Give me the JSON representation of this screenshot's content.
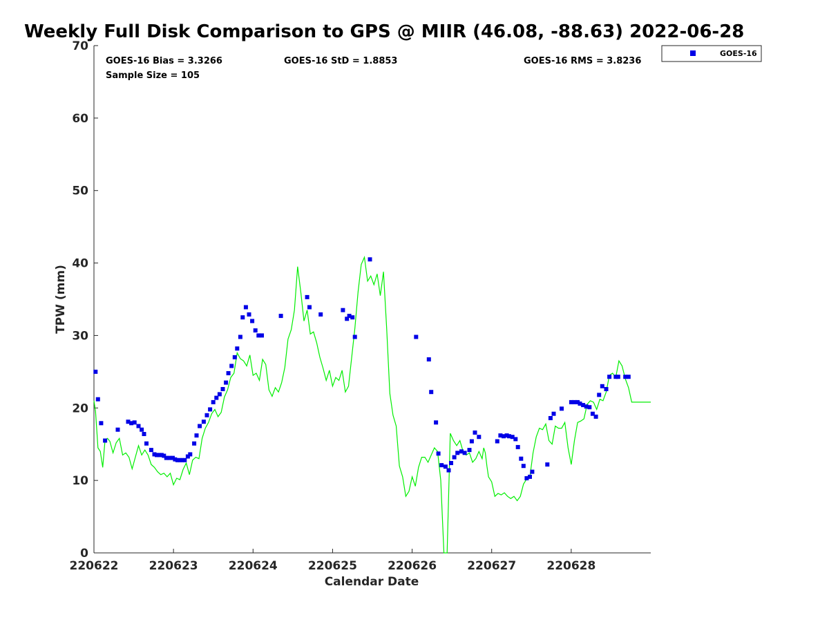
{
  "chart_data": {
    "type": "scatter",
    "title": "Weekly Full Disk Comparison to GPS @ MIIR (46.08, -88.63) 2022-06-28",
    "xlabel": "Calendar Date",
    "ylabel": "TPW (mm)",
    "xlim": [
      0,
      7.0
    ],
    "ylim": [
      0,
      70
    ],
    "yticks": [
      0,
      10,
      20,
      30,
      40,
      50,
      60,
      70
    ],
    "xticks": [
      {
        "value": 0,
        "label": "220622"
      },
      {
        "value": 1,
        "label": "220623"
      },
      {
        "value": 2,
        "label": "220624"
      },
      {
        "value": 3,
        "label": "220625"
      },
      {
        "value": 4,
        "label": "220626"
      },
      {
        "value": 5,
        "label": "220627"
      },
      {
        "value": 6,
        "label": "220628"
      }
    ],
    "stats": {
      "bias": "GOES-16 Bias = 3.3266",
      "std": "GOES-16 StD = 1.8853",
      "rms": "GOES-16 RMS = 3.8236",
      "sample": "Sample Size = 105"
    },
    "legend": {
      "placement": "outside-top-right",
      "entries": [
        "GOES-16"
      ]
    },
    "colors": {
      "goes": "#0000e6",
      "gps": "#00ee00"
    },
    "series": [
      {
        "name": "GOES-16",
        "marker": "square",
        "x": [
          0.02,
          0.05,
          0.09,
          0.14,
          0.3,
          0.43,
          0.47,
          0.51,
          0.56,
          0.6,
          0.63,
          0.66,
          0.72,
          0.76,
          0.79,
          0.82,
          0.85,
          0.88,
          0.91,
          0.95,
          0.99,
          1.02,
          1.05,
          1.08,
          1.11,
          1.14,
          1.18,
          1.21,
          1.26,
          1.29,
          1.33,
          1.38,
          1.42,
          1.46,
          1.5,
          1.54,
          1.58,
          1.62,
          1.66,
          1.69,
          1.73,
          1.77,
          1.8,
          1.84,
          1.87,
          1.91,
          1.95,
          1.99,
          2.03,
          2.07,
          2.11,
          2.35,
          2.68,
          2.71,
          2.85,
          3.13,
          3.18,
          3.21,
          3.25,
          3.28,
          3.47,
          4.05,
          4.21,
          4.24,
          4.3,
          4.33,
          4.37,
          4.42,
          4.46,
          4.49,
          4.53,
          4.57,
          4.62,
          4.66,
          4.72,
          4.75,
          4.79,
          4.84,
          5.07,
          5.11,
          5.15,
          5.19,
          5.22,
          5.26,
          5.3,
          5.33,
          5.37,
          5.4,
          5.44,
          5.48,
          5.51,
          5.7,
          5.74,
          5.78,
          5.88,
          6.0,
          6.04,
          6.08,
          6.11,
          6.15,
          6.19,
          6.23,
          6.27,
          6.31,
          6.35,
          6.39,
          6.44,
          6.48,
          6.56,
          6.59,
          6.68,
          6.72
        ],
        "values": [
          25.0,
          21.2,
          17.9,
          15.5,
          17.0,
          18.1,
          17.9,
          18.0,
          17.5,
          17.0,
          16.4,
          15.1,
          14.2,
          13.6,
          13.5,
          13.5,
          13.5,
          13.4,
          13.1,
          13.1,
          13.1,
          12.9,
          12.8,
          12.8,
          12.8,
          12.8,
          13.3,
          13.6,
          15.1,
          16.2,
          17.5,
          18.1,
          19.0,
          19.8,
          20.8,
          21.4,
          21.9,
          22.6,
          23.5,
          24.8,
          25.8,
          27.0,
          28.2,
          29.8,
          32.5,
          33.9,
          32.9,
          32.0,
          30.7,
          30.0,
          30.0,
          32.7,
          35.3,
          33.9,
          32.9,
          33.5,
          32.3,
          32.7,
          32.5,
          29.8,
          40.5,
          29.8,
          26.7,
          22.2,
          18.0,
          13.7,
          12.1,
          11.9,
          11.4,
          12.4,
          13.2,
          13.8,
          14.0,
          13.8,
          14.2,
          15.4,
          16.6,
          16.0,
          15.4,
          16.2,
          16.1,
          16.2,
          16.1,
          16.0,
          15.7,
          14.6,
          13.0,
          12.0,
          10.3,
          10.5,
          11.2,
          12.2,
          18.6,
          19.2,
          19.9,
          20.8,
          20.8,
          20.8,
          20.6,
          20.4,
          20.2,
          20.1,
          19.2,
          18.8,
          21.8,
          23.0,
          22.6,
          24.3,
          24.3,
          24.3,
          24.3,
          24.3
        ]
      },
      {
        "name": "GPS",
        "marker": "line",
        "x": [
          0.0,
          0.02,
          0.05,
          0.08,
          0.11,
          0.14,
          0.17,
          0.2,
          0.24,
          0.28,
          0.32,
          0.36,
          0.4,
          0.44,
          0.48,
          0.52,
          0.56,
          0.6,
          0.64,
          0.68,
          0.72,
          0.76,
          0.8,
          0.84,
          0.88,
          0.92,
          0.96,
          1.0,
          1.04,
          1.08,
          1.12,
          1.16,
          1.2,
          1.24,
          1.28,
          1.32,
          1.36,
          1.4,
          1.44,
          1.48,
          1.52,
          1.56,
          1.6,
          1.64,
          1.68,
          1.72,
          1.76,
          1.8,
          1.84,
          1.88,
          1.92,
          1.96,
          2.0,
          2.04,
          2.08,
          2.12,
          2.16,
          2.2,
          2.24,
          2.28,
          2.32,
          2.36,
          2.4,
          2.44,
          2.48,
          2.52,
          2.56,
          2.6,
          2.64,
          2.68,
          2.72,
          2.76,
          2.8,
          2.84,
          2.88,
          2.92,
          2.96,
          3.0,
          3.04,
          3.08,
          3.12,
          3.16,
          3.2,
          3.24,
          3.28,
          3.32,
          3.36,
          3.4,
          3.44,
          3.48,
          3.52,
          3.56,
          3.6,
          3.64,
          3.68,
          3.72,
          3.76,
          3.8,
          3.84,
          3.88,
          3.92,
          3.96,
          4.0,
          4.04,
          4.08,
          4.12,
          4.16,
          4.2,
          4.24,
          4.28,
          4.32,
          4.36,
          4.4,
          4.44,
          4.48,
          4.52,
          4.56,
          4.6,
          4.64,
          4.68,
          4.72,
          4.76,
          4.8,
          4.84,
          4.88,
          4.9,
          4.92,
          4.94,
          4.96,
          5.0,
          5.04,
          5.08,
          5.12,
          5.16,
          5.2,
          5.24,
          5.28,
          5.32,
          5.36,
          5.4,
          5.44,
          5.48,
          5.52,
          5.56,
          5.6,
          5.64,
          5.68,
          5.72,
          5.76,
          5.8,
          5.84,
          5.88,
          5.92,
          5.96,
          6.0,
          6.04,
          6.08,
          6.12,
          6.16,
          6.2,
          6.24,
          6.28,
          6.32,
          6.36,
          6.4,
          6.44,
          6.48,
          6.52,
          6.56,
          6.6,
          6.64,
          6.68,
          6.72,
          6.76,
          6.8,
          6.84,
          6.88,
          6.92,
          6.96,
          7.0
        ],
        "values": [
          21.0,
          19.5,
          14.5,
          14.0,
          11.8,
          15.6,
          15.8,
          15.4,
          13.8,
          15.2,
          15.8,
          13.5,
          13.8,
          13.2,
          11.6,
          13.2,
          14.8,
          13.5,
          14.2,
          13.5,
          12.2,
          11.8,
          11.2,
          10.8,
          11.0,
          10.5,
          11.0,
          9.4,
          10.3,
          10.1,
          11.5,
          12.4,
          10.8,
          12.8,
          13.2,
          13.0,
          15.8,
          17.2,
          18.0,
          19.2,
          19.8,
          18.8,
          19.4,
          21.5,
          22.5,
          24.2,
          24.8,
          27.6,
          26.8,
          26.5,
          25.8,
          27.3,
          24.5,
          24.8,
          23.8,
          26.7,
          26.0,
          22.5,
          21.6,
          22.8,
          22.2,
          23.5,
          25.6,
          29.5,
          30.8,
          33.5,
          39.5,
          36.0,
          32.0,
          33.5,
          30.2,
          30.5,
          29.0,
          27.0,
          25.5,
          23.8,
          25.2,
          23.0,
          24.2,
          23.8,
          25.2,
          22.2,
          23.0,
          27.0,
          31.0,
          36.0,
          39.8,
          40.8,
          37.5,
          38.2,
          37.0,
          38.5,
          35.5,
          38.8,
          31.0,
          22.0,
          19.0,
          17.5,
          12.0,
          10.5,
          7.8,
          8.5,
          10.5,
          9.2,
          11.8,
          13.2,
          13.2,
          12.5,
          13.5,
          14.5,
          14.0,
          10.0,
          0.0,
          0.0,
          16.5,
          15.5,
          14.8,
          15.5,
          14.0,
          13.5,
          13.8,
          12.5,
          13.0,
          14.0,
          13.0,
          14.5,
          13.8,
          12.0,
          10.5,
          9.8,
          7.8,
          8.2,
          8.0,
          8.3,
          7.8,
          7.5,
          7.8,
          7.2,
          7.8,
          9.5,
          10.2,
          10.5,
          13.8,
          16.0,
          17.2,
          17.0,
          17.8,
          15.5,
          15.0,
          17.5,
          17.2,
          17.2,
          18.0,
          14.5,
          12.2,
          15.5,
          18.0,
          18.2,
          18.5,
          20.5,
          21.0,
          20.8,
          19.8,
          21.2,
          21.0,
          22.2,
          24.5,
          24.8,
          24.2,
          26.5,
          25.8,
          24.0,
          22.8,
          20.8,
          20.8,
          20.8,
          20.8,
          20.8,
          20.8,
          20.8
        ]
      }
    ]
  }
}
